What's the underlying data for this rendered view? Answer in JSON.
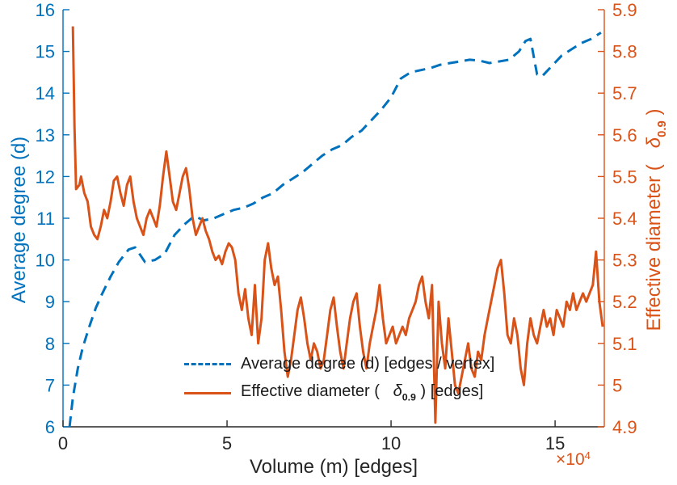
{
  "figure": {
    "background": "#ffffff"
  },
  "chart_data": {
    "type": "line",
    "title": "",
    "grid": false,
    "x_axis": {
      "label": "Volume (m) [edges]",
      "exponent_base": "×10",
      "exponent_power": "4",
      "xlim": [
        0,
        16.5
      ],
      "ticks": [
        0,
        5,
        10,
        15
      ],
      "tick_labels": [
        "0",
        "5",
        "10",
        "15"
      ],
      "color": "#262626"
    },
    "y_left": {
      "label": "Average degree (d)",
      "ylim": [
        6,
        16
      ],
      "ticks": [
        6,
        7,
        8,
        9,
        10,
        11,
        12,
        13,
        14,
        15,
        16
      ],
      "tick_labels": [
        "6",
        "7",
        "8",
        "9",
        "10",
        "11",
        "12",
        "13",
        "14",
        "15",
        "16"
      ],
      "color": "#0072BD"
    },
    "y_right": {
      "label_prefix": "Effective diameter (   ",
      "label_symbol": "δ",
      "label_sub": "0.9",
      "label_suffix": " )",
      "ylim": [
        4.9,
        5.9
      ],
      "ticks": [
        4.9,
        5.0,
        5.1,
        5.2,
        5.3,
        5.4,
        5.5,
        5.6,
        5.7,
        5.8,
        5.9
      ],
      "tick_labels": [
        "4.9",
        "5",
        "5.1",
        "5.2",
        "5.3",
        "5.4",
        "5.5",
        "5.6",
        "5.7",
        "5.8",
        "5.9"
      ],
      "color": "#D95319"
    },
    "series": [
      {
        "name": "Average degree (d) [edges / vertex]",
        "axis": "left",
        "color": "#0072BD",
        "style": "dashed",
        "line_width": 3,
        "points": [
          [
            0.2,
            6.0
          ],
          [
            0.3,
            6.7
          ],
          [
            0.45,
            7.4
          ],
          [
            0.6,
            7.9
          ],
          [
            0.8,
            8.4
          ],
          [
            1.0,
            8.85
          ],
          [
            1.2,
            9.2
          ],
          [
            1.45,
            9.6
          ],
          [
            1.7,
            9.95
          ],
          [
            2.0,
            10.25
          ],
          [
            2.2,
            10.3
          ],
          [
            2.5,
            9.95
          ],
          [
            2.8,
            10.0
          ],
          [
            3.1,
            10.15
          ],
          [
            3.4,
            10.6
          ],
          [
            3.7,
            10.85
          ],
          [
            4.0,
            11.05
          ],
          [
            4.3,
            10.95
          ],
          [
            4.6,
            11.0
          ],
          [
            4.9,
            11.1
          ],
          [
            5.2,
            11.2
          ],
          [
            5.5,
            11.25
          ],
          [
            5.8,
            11.35
          ],
          [
            6.1,
            11.5
          ],
          [
            6.4,
            11.6
          ],
          [
            6.7,
            11.8
          ],
          [
            7.0,
            11.95
          ],
          [
            7.3,
            12.1
          ],
          [
            7.6,
            12.3
          ],
          [
            7.9,
            12.5
          ],
          [
            8.2,
            12.65
          ],
          [
            8.5,
            12.75
          ],
          [
            8.8,
            12.95
          ],
          [
            9.1,
            13.1
          ],
          [
            9.4,
            13.35
          ],
          [
            9.7,
            13.6
          ],
          [
            10.0,
            13.9
          ],
          [
            10.3,
            14.35
          ],
          [
            10.6,
            14.5
          ],
          [
            10.9,
            14.55
          ],
          [
            11.2,
            14.6
          ],
          [
            11.5,
            14.68
          ],
          [
            11.8,
            14.72
          ],
          [
            12.1,
            14.76
          ],
          [
            12.4,
            14.8
          ],
          [
            12.7,
            14.78
          ],
          [
            13.0,
            14.72
          ],
          [
            13.3,
            14.76
          ],
          [
            13.6,
            14.8
          ],
          [
            13.9,
            15.0
          ],
          [
            14.1,
            15.25
          ],
          [
            14.25,
            15.3
          ],
          [
            14.45,
            14.45
          ],
          [
            14.6,
            14.4
          ],
          [
            14.9,
            14.65
          ],
          [
            15.2,
            14.9
          ],
          [
            15.5,
            15.05
          ],
          [
            15.8,
            15.2
          ],
          [
            16.1,
            15.3
          ],
          [
            16.4,
            15.45
          ]
        ]
      },
      {
        "name": "Effective diameter ( δ_0.9 ) [edges]",
        "axis": "right",
        "color": "#D95319",
        "style": "solid",
        "line_width": 3,
        "points": [
          [
            0.3,
            5.86
          ],
          [
            0.35,
            5.62
          ],
          [
            0.4,
            5.47
          ],
          [
            0.5,
            5.48
          ],
          [
            0.55,
            5.5
          ],
          [
            0.65,
            5.46
          ],
          [
            0.75,
            5.44
          ],
          [
            0.85,
            5.38
          ],
          [
            0.95,
            5.36
          ],
          [
            1.05,
            5.35
          ],
          [
            1.15,
            5.38
          ],
          [
            1.25,
            5.42
          ],
          [
            1.35,
            5.4
          ],
          [
            1.45,
            5.44
          ],
          [
            1.55,
            5.49
          ],
          [
            1.65,
            5.5
          ],
          [
            1.75,
            5.46
          ],
          [
            1.85,
            5.43
          ],
          [
            1.95,
            5.48
          ],
          [
            2.05,
            5.5
          ],
          [
            2.15,
            5.44
          ],
          [
            2.25,
            5.4
          ],
          [
            2.35,
            5.38
          ],
          [
            2.45,
            5.36
          ],
          [
            2.55,
            5.4
          ],
          [
            2.65,
            5.42
          ],
          [
            2.75,
            5.4
          ],
          [
            2.85,
            5.38
          ],
          [
            2.95,
            5.43
          ],
          [
            3.05,
            5.5
          ],
          [
            3.15,
            5.56
          ],
          [
            3.25,
            5.5
          ],
          [
            3.35,
            5.44
          ],
          [
            3.45,
            5.42
          ],
          [
            3.55,
            5.46
          ],
          [
            3.65,
            5.5
          ],
          [
            3.75,
            5.52
          ],
          [
            3.85,
            5.47
          ],
          [
            3.95,
            5.4
          ],
          [
            4.05,
            5.36
          ],
          [
            4.15,
            5.38
          ],
          [
            4.25,
            5.4
          ],
          [
            4.35,
            5.37
          ],
          [
            4.45,
            5.35
          ],
          [
            4.55,
            5.32
          ],
          [
            4.65,
            5.3
          ],
          [
            4.75,
            5.31
          ],
          [
            4.85,
            5.29
          ],
          [
            4.95,
            5.32
          ],
          [
            5.05,
            5.34
          ],
          [
            5.15,
            5.33
          ],
          [
            5.25,
            5.3
          ],
          [
            5.35,
            5.22
          ],
          [
            5.45,
            5.18
          ],
          [
            5.55,
            5.23
          ],
          [
            5.65,
            5.16
          ],
          [
            5.75,
            5.12
          ],
          [
            5.85,
            5.24
          ],
          [
            5.95,
            5.1
          ],
          [
            6.05,
            5.16
          ],
          [
            6.15,
            5.3
          ],
          [
            6.25,
            5.34
          ],
          [
            6.35,
            5.28
          ],
          [
            6.45,
            5.24
          ],
          [
            6.55,
            5.26
          ],
          [
            6.65,
            5.18
          ],
          [
            6.75,
            5.08
          ],
          [
            6.85,
            5.02
          ],
          [
            6.95,
            5.06
          ],
          [
            7.05,
            5.12
          ],
          [
            7.15,
            5.18
          ],
          [
            7.25,
            5.21
          ],
          [
            7.35,
            5.16
          ],
          [
            7.45,
            5.1
          ],
          [
            7.55,
            5.06
          ],
          [
            7.65,
            5.1
          ],
          [
            7.75,
            5.08
          ],
          [
            7.85,
            5.04
          ],
          [
            7.95,
            5.06
          ],
          [
            8.05,
            5.12
          ],
          [
            8.15,
            5.18
          ],
          [
            8.25,
            5.21
          ],
          [
            8.35,
            5.14
          ],
          [
            8.45,
            5.08
          ],
          [
            8.55,
            5.04
          ],
          [
            8.65,
            5.1
          ],
          [
            8.75,
            5.16
          ],
          [
            8.85,
            5.2
          ],
          [
            8.95,
            5.22
          ],
          [
            9.05,
            5.14
          ],
          [
            9.15,
            5.08
          ],
          [
            9.25,
            5.04
          ],
          [
            9.35,
            5.1
          ],
          [
            9.45,
            5.14
          ],
          [
            9.55,
            5.18
          ],
          [
            9.65,
            5.24
          ],
          [
            9.75,
            5.16
          ],
          [
            9.85,
            5.1
          ],
          [
            9.95,
            5.12
          ],
          [
            10.05,
            5.14
          ],
          [
            10.15,
            5.1
          ],
          [
            10.25,
            5.12
          ],
          [
            10.35,
            5.14
          ],
          [
            10.45,
            5.12
          ],
          [
            10.55,
            5.16
          ],
          [
            10.65,
            5.18
          ],
          [
            10.75,
            5.2
          ],
          [
            10.85,
            5.24
          ],
          [
            10.95,
            5.26
          ],
          [
            11.05,
            5.2
          ],
          [
            11.15,
            5.16
          ],
          [
            11.25,
            5.24
          ],
          [
            11.35,
            4.91
          ],
          [
            11.45,
            5.2
          ],
          [
            11.55,
            5.1
          ],
          [
            11.65,
            5.04
          ],
          [
            11.75,
            5.16
          ],
          [
            11.85,
            5.08
          ],
          [
            11.95,
            5.0
          ],
          [
            12.05,
            4.98
          ],
          [
            12.15,
            5.02
          ],
          [
            12.25,
            5.06
          ],
          [
            12.35,
            5.1
          ],
          [
            12.45,
            5.04
          ],
          [
            12.55,
            5.02
          ],
          [
            12.65,
            5.08
          ],
          [
            12.75,
            5.06
          ],
          [
            12.85,
            5.12
          ],
          [
            12.95,
            5.16
          ],
          [
            13.05,
            5.2
          ],
          [
            13.15,
            5.24
          ],
          [
            13.25,
            5.28
          ],
          [
            13.35,
            5.3
          ],
          [
            13.45,
            5.22
          ],
          [
            13.55,
            5.12
          ],
          [
            13.65,
            5.1
          ],
          [
            13.75,
            5.16
          ],
          [
            13.85,
            5.12
          ],
          [
            13.95,
            5.04
          ],
          [
            14.05,
            5.0
          ],
          [
            14.15,
            5.1
          ],
          [
            14.25,
            5.16
          ],
          [
            14.35,
            5.12
          ],
          [
            14.45,
            5.1
          ],
          [
            14.55,
            5.14
          ],
          [
            14.65,
            5.18
          ],
          [
            14.75,
            5.14
          ],
          [
            14.85,
            5.16
          ],
          [
            14.95,
            5.12
          ],
          [
            15.05,
            5.18
          ],
          [
            15.15,
            5.16
          ],
          [
            15.25,
            5.14
          ],
          [
            15.35,
            5.2
          ],
          [
            15.45,
            5.18
          ],
          [
            15.55,
            5.22
          ],
          [
            15.65,
            5.18
          ],
          [
            15.75,
            5.2
          ],
          [
            15.85,
            5.22
          ],
          [
            15.95,
            5.2
          ],
          [
            16.05,
            5.22
          ],
          [
            16.15,
            5.24
          ],
          [
            16.25,
            5.32
          ],
          [
            16.35,
            5.2
          ],
          [
            16.45,
            5.14
          ]
        ]
      }
    ],
    "legend": {
      "position": "south-inside",
      "entries": [
        {
          "label": "Average degree (d) [edges / vertex]"
        },
        {
          "label_prefix": "Effective diameter (   ",
          "label_symbol": "δ",
          "label_sub": "0.9",
          "label_suffix": " ) [edges]"
        }
      ]
    }
  }
}
